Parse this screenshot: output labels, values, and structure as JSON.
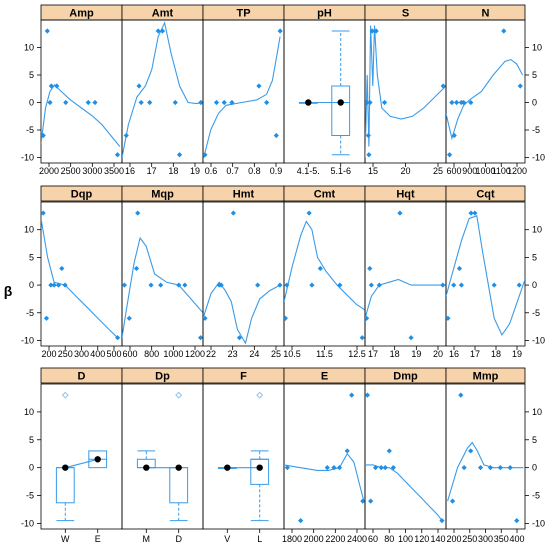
{
  "figure": {
    "ylabel": "β",
    "y_ticks": [
      -10,
      -5,
      0,
      5,
      10
    ],
    "ylim": [
      -11,
      15
    ],
    "colors": {
      "point": "#1f8fe6",
      "line": "#3a9be8",
      "strip": "#f6d3aa",
      "frame": "#000000",
      "open_point": "#8fc3f1"
    }
  },
  "chart_data": [
    {
      "type": "scatter",
      "panel": "Amp",
      "x_ticks": [
        "2000",
        "2500",
        "3000",
        "3500"
      ],
      "xlim": [
        1850,
        3650
      ],
      "points": [
        [
          1900,
          -6
        ],
        [
          1990,
          13
        ],
        [
          2050,
          0
        ],
        [
          2080,
          3
        ],
        [
          2200,
          3
        ],
        [
          2400,
          0
        ],
        [
          2900,
          0
        ],
        [
          3050,
          0
        ],
        [
          3550,
          -9.5
        ]
      ],
      "smooth": [
        [
          1850,
          -7.5
        ],
        [
          1950,
          -1
        ],
        [
          2050,
          2
        ],
        [
          2150,
          3.2
        ],
        [
          2300,
          2
        ],
        [
          2500,
          0.5
        ],
        [
          2750,
          -1
        ],
        [
          3000,
          -2.5
        ],
        [
          3200,
          -4
        ],
        [
          3400,
          -6
        ],
        [
          3600,
          -8
        ]
      ]
    },
    {
      "type": "scatter",
      "panel": "Amt",
      "x_ticks": [
        "16",
        "17",
        "18",
        "19"
      ],
      "xlim": [
        15.9,
        19.7
      ],
      "points": [
        [
          16.1,
          -6
        ],
        [
          16.7,
          3
        ],
        [
          16.8,
          0
        ],
        [
          17.2,
          0
        ],
        [
          17.6,
          13
        ],
        [
          17.8,
          13
        ],
        [
          18.4,
          0
        ],
        [
          18.6,
          -9.5
        ],
        [
          19.6,
          0
        ]
      ],
      "smooth": [
        [
          15.9,
          -10
        ],
        [
          16.2,
          -4
        ],
        [
          16.6,
          1
        ],
        [
          17.0,
          3
        ],
        [
          17.3,
          6
        ],
        [
          17.6,
          12
        ],
        [
          17.9,
          14.5
        ],
        [
          18.2,
          9
        ],
        [
          18.6,
          3
        ],
        [
          19.0,
          0
        ],
        [
          19.4,
          -0.2
        ],
        [
          19.7,
          0
        ]
      ]
    },
    {
      "type": "scatter",
      "panel": "TP",
      "x_ticks": [
        "0.6",
        "0.7",
        "0.8",
        "0.9"
      ],
      "xlim": [
        0.5,
        0.92
      ],
      "points": [
        [
          0.51,
          -9.5
        ],
        [
          0.57,
          0
        ],
        [
          0.61,
          0
        ],
        [
          0.65,
          0
        ],
        [
          0.79,
          3
        ],
        [
          0.83,
          0
        ],
        [
          0.88,
          -6
        ],
        [
          0.9,
          13
        ]
      ],
      "smooth": [
        [
          0.5,
          -10.5
        ],
        [
          0.54,
          -5
        ],
        [
          0.58,
          -2
        ],
        [
          0.62,
          -0.5
        ],
        [
          0.7,
          0
        ],
        [
          0.78,
          0.5
        ],
        [
          0.83,
          1.5
        ],
        [
          0.86,
          4
        ],
        [
          0.88,
          8
        ],
        [
          0.9,
          12
        ]
      ]
    },
    {
      "type": "box",
      "panel": "pH",
      "x_ticks": [
        "4.1-5.",
        "5.1-6"
      ],
      "groups": [
        {
          "label": "4.1-5.",
          "mean": 0,
          "median": 0,
          "q1": 0,
          "q3": 0,
          "min": 0,
          "max": 0
        },
        {
          "label": "5.1-6",
          "mean": 0,
          "median": 0,
          "q1": -6,
          "q3": 3,
          "min": -9.5,
          "max": 13
        }
      ]
    },
    {
      "type": "scatter",
      "panel": "S",
      "x_ticks": [
        "15",
        "20",
        "25"
      ],
      "xlim": [
        12.5,
        27
      ],
      "points": [
        [
          12.8,
          0
        ],
        [
          13.1,
          -6
        ],
        [
          13.2,
          -9.5
        ],
        [
          13.4,
          0
        ],
        [
          13.8,
          13
        ],
        [
          14.5,
          13
        ],
        [
          16.0,
          0
        ],
        [
          26.5,
          3
        ]
      ],
      "smooth": [
        [
          12.5,
          -10
        ],
        [
          12.9,
          5
        ],
        [
          13.2,
          -8
        ],
        [
          13.5,
          14
        ],
        [
          13.9,
          3
        ],
        [
          14.2,
          14
        ],
        [
          14.7,
          5
        ],
        [
          15.5,
          -1
        ],
        [
          17,
          -2.5
        ],
        [
          19,
          -3
        ],
        [
          21,
          -2.5
        ],
        [
          23,
          -1
        ],
        [
          25,
          1
        ],
        [
          27,
          3
        ]
      ]
    },
    {
      "type": "scatter",
      "panel": "N",
      "x_ticks": [
        "600",
        "900",
        "1000",
        "1100",
        "1200"
      ],
      "xlim": [
        550,
        1220
      ],
      "points": [
        [
          580,
          -9.5
        ],
        [
          600,
          0
        ],
        [
          620,
          -6
        ],
        [
          640,
          0
        ],
        [
          680,
          0
        ],
        [
          700,
          0
        ],
        [
          760,
          0
        ],
        [
          1040,
          13
        ],
        [
          1180,
          3
        ]
      ],
      "smooth": [
        [
          550,
          -2
        ],
        [
          600,
          -6.5
        ],
        [
          650,
          -3
        ],
        [
          700,
          -0.5
        ],
        [
          750,
          0.5
        ],
        [
          850,
          2
        ],
        [
          950,
          5
        ],
        [
          1050,
          7.5
        ],
        [
          1100,
          7.8
        ],
        [
          1150,
          7
        ],
        [
          1200,
          5
        ]
      ]
    },
    {
      "type": "scatter",
      "panel": "Dqp",
      "x_ticks": [
        "200",
        "250",
        "300",
        "400",
        "500"
      ],
      "xlim": [
        190,
        560
      ],
      "points": [
        [
          200,
          13
        ],
        [
          215,
          -6
        ],
        [
          235,
          0
        ],
        [
          250,
          0
        ],
        [
          270,
          0
        ],
        [
          285,
          3
        ],
        [
          300,
          0
        ],
        [
          540,
          -9.5
        ]
      ],
      "smooth": [
        [
          190,
          12
        ],
        [
          220,
          5
        ],
        [
          250,
          0.5
        ],
        [
          300,
          0
        ],
        [
          350,
          -2
        ],
        [
          400,
          -4
        ],
        [
          450,
          -6
        ],
        [
          500,
          -8
        ],
        [
          540,
          -9.5
        ]
      ]
    },
    {
      "type": "scatter",
      "panel": "Mqp",
      "x_ticks": [
        "600",
        "800",
        "1000",
        "1200"
      ],
      "xlim": [
        580,
        1250
      ],
      "points": [
        [
          600,
          0
        ],
        [
          640,
          -6
        ],
        [
          700,
          3
        ],
        [
          710,
          13
        ],
        [
          820,
          0
        ],
        [
          900,
          0
        ],
        [
          1050,
          0
        ],
        [
          1100,
          0
        ],
        [
          1230,
          -9.5
        ]
      ],
      "smooth": [
        [
          580,
          -9.5
        ],
        [
          620,
          -4
        ],
        [
          680,
          4
        ],
        [
          730,
          8.5
        ],
        [
          780,
          7
        ],
        [
          850,
          2
        ],
        [
          950,
          0.5
        ],
        [
          1050,
          0
        ],
        [
          1150,
          -2.5
        ],
        [
          1250,
          -5
        ]
      ]
    },
    {
      "type": "scatter",
      "panel": "Hmt",
      "x_ticks": [
        "22",
        "23",
        "24",
        "25"
      ],
      "xlim": [
        21.5,
        25.5
      ],
      "points": [
        [
          21.6,
          -6
        ],
        [
          22.3,
          0
        ],
        [
          22.4,
          0
        ],
        [
          23.0,
          13
        ],
        [
          23.3,
          -9.5
        ],
        [
          24.2,
          0
        ],
        [
          25.3,
          0
        ]
      ],
      "smooth": [
        [
          21.5,
          -6
        ],
        [
          21.9,
          -1.5
        ],
        [
          22.3,
          0.5
        ],
        [
          22.6,
          -1
        ],
        [
          22.9,
          -3
        ],
        [
          23.2,
          -8
        ],
        [
          23.6,
          -10.5
        ],
        [
          23.9,
          -6
        ],
        [
          24.3,
          -2.5
        ],
        [
          24.8,
          -1
        ],
        [
          25.3,
          0
        ]
      ]
    },
    {
      "type": "scatter",
      "panel": "Cmt",
      "x_ticks": [
        "10.5",
        "11.5",
        "12.5"
      ],
      "xlim": [
        10.4,
        13.3
      ],
      "points": [
        [
          10.45,
          -6
        ],
        [
          10.5,
          0
        ],
        [
          11.3,
          13
        ],
        [
          11.4,
          0
        ],
        [
          11.7,
          3
        ],
        [
          12.4,
          0
        ],
        [
          13.2,
          -9.5
        ]
      ],
      "smooth": [
        [
          10.4,
          -3
        ],
        [
          10.7,
          3.5
        ],
        [
          11.0,
          9
        ],
        [
          11.2,
          11.5
        ],
        [
          11.4,
          10
        ],
        [
          11.6,
          5
        ],
        [
          11.9,
          2.5
        ],
        [
          12.3,
          0
        ],
        [
          12.7,
          -2
        ],
        [
          13.0,
          -3.5
        ],
        [
          13.3,
          -4.5
        ]
      ]
    },
    {
      "type": "scatter",
      "panel": "Hqt",
      "x_ticks": [
        "17",
        "18",
        "19",
        "20"
      ],
      "xlim": [
        16.1,
        21.2
      ],
      "points": [
        [
          16.2,
          -6
        ],
        [
          16.4,
          3
        ],
        [
          16.5,
          0
        ],
        [
          17.0,
          0
        ],
        [
          18.3,
          13
        ],
        [
          19.0,
          -9.5
        ],
        [
          21.0,
          0
        ]
      ],
      "smooth": [
        [
          16.1,
          -6
        ],
        [
          16.5,
          -2
        ],
        [
          17.0,
          0
        ],
        [
          17.6,
          0.5
        ],
        [
          18.2,
          1
        ],
        [
          19.0,
          0
        ],
        [
          20.0,
          0
        ],
        [
          21.0,
          0
        ],
        [
          21.2,
          0
        ]
      ]
    },
    {
      "type": "scatter",
      "panel": "Cqt",
      "x_ticks": [
        "16",
        "17",
        "18",
        "19"
      ],
      "xlim": [
        15.5,
        19.6
      ],
      "points": [
        [
          15.6,
          -6
        ],
        [
          15.9,
          0
        ],
        [
          16.2,
          3
        ],
        [
          16.3,
          0
        ],
        [
          16.8,
          13
        ],
        [
          17.0,
          13
        ],
        [
          18.0,
          0
        ],
        [
          19.3,
          0
        ]
      ],
      "smooth": [
        [
          15.5,
          -2
        ],
        [
          15.9,
          3
        ],
        [
          16.3,
          8
        ],
        [
          16.7,
          12
        ],
        [
          17.1,
          12.5
        ],
        [
          17.4,
          6
        ],
        [
          17.7,
          0
        ],
        [
          18.0,
          -6
        ],
        [
          18.4,
          -9
        ],
        [
          18.8,
          -7
        ],
        [
          19.2,
          -3
        ],
        [
          19.6,
          1
        ]
      ]
    },
    {
      "type": "box",
      "panel": "D",
      "x_ticks": [
        "W",
        "E"
      ],
      "groups": [
        {
          "label": "W",
          "mean": 0,
          "median": 0,
          "q1": -6.3,
          "q3": 0,
          "min": -9.5,
          "max": 0,
          "outliers": [
            13
          ]
        },
        {
          "label": "E",
          "mean": 1.5,
          "median": 1.5,
          "q1": 0,
          "q3": 3,
          "min": 0,
          "max": 3
        }
      ]
    },
    {
      "type": "box",
      "panel": "Dp",
      "x_ticks": [
        "M",
        "D"
      ],
      "groups": [
        {
          "label": "M",
          "mean": 0,
          "median": 0,
          "q1": 0,
          "q3": 1.5,
          "min": 0,
          "max": 3
        },
        {
          "label": "D",
          "mean": 0,
          "median": 0,
          "q1": -6.3,
          "q3": 0,
          "min": -9.5,
          "max": 0,
          "outliers": [
            13
          ]
        }
      ]
    },
    {
      "type": "box",
      "panel": "F",
      "x_ticks": [
        "V",
        "L"
      ],
      "groups": [
        {
          "label": "V",
          "mean": 0,
          "median": 0,
          "q1": 0,
          "q3": 0,
          "min": 0,
          "max": 0
        },
        {
          "label": "L",
          "mean": 0,
          "median": 1.5,
          "q1": -3,
          "q3": 1.5,
          "min": -9.5,
          "max": 3,
          "outliers": [
            13
          ]
        }
      ]
    },
    {
      "type": "scatter",
      "panel": "E",
      "x_ticks": [
        "1800",
        "2000",
        "2200",
        "2400"
      ],
      "xlim": [
        1750,
        2480
      ],
      "points": [
        [
          1780,
          0
        ],
        [
          1900,
          -9.5
        ],
        [
          2140,
          0
        ],
        [
          2200,
          0
        ],
        [
          2250,
          0
        ],
        [
          2320,
          3
        ],
        [
          2360,
          13
        ],
        [
          2460,
          -6
        ]
      ],
      "smooth": [
        [
          1750,
          0.5
        ],
        [
          1900,
          0
        ],
        [
          2050,
          -0.5
        ],
        [
          2150,
          -0.5
        ],
        [
          2250,
          0
        ],
        [
          2320,
          2.5
        ],
        [
          2380,
          1
        ],
        [
          2430,
          -3
        ],
        [
          2470,
          -6
        ]
      ]
    },
    {
      "type": "scatter",
      "panel": "Dmp",
      "x_ticks": [
        "60",
        "80",
        "100",
        "120",
        "140"
      ],
      "xlim": [
        45,
        145
      ],
      "points": [
        [
          48,
          13
        ],
        [
          52,
          -6
        ],
        [
          58,
          0
        ],
        [
          65,
          0
        ],
        [
          70,
          0
        ],
        [
          75,
          3
        ],
        [
          80,
          0
        ],
        [
          140,
          -9.5
        ]
      ],
      "smooth": [
        [
          45,
          0.5
        ],
        [
          55,
          0.5
        ],
        [
          65,
          0
        ],
        [
          75,
          0
        ],
        [
          85,
          -1
        ],
        [
          95,
          -2.5
        ],
        [
          105,
          -4
        ],
        [
          115,
          -5.5
        ],
        [
          125,
          -7
        ],
        [
          135,
          -8.5
        ],
        [
          140,
          -9.5
        ]
      ]
    },
    {
      "type": "scatter",
      "panel": "Mmp",
      "x_ticks": [
        "200",
        "250",
        "300",
        "350",
        "400"
      ],
      "xlim": [
        185,
        425
      ],
      "points": [
        [
          205,
          -6
        ],
        [
          230,
          13
        ],
        [
          240,
          0
        ],
        [
          260,
          3
        ],
        [
          290,
          0
        ],
        [
          320,
          0
        ],
        [
          350,
          0
        ],
        [
          380,
          0
        ],
        [
          400,
          -9.5
        ]
      ],
      "smooth": [
        [
          190,
          -6
        ],
        [
          220,
          0
        ],
        [
          250,
          3.5
        ],
        [
          265,
          4.5
        ],
        [
          280,
          3
        ],
        [
          300,
          0.5
        ],
        [
          330,
          0
        ],
        [
          370,
          0
        ],
        [
          410,
          0
        ],
        [
          420,
          0
        ]
      ]
    }
  ]
}
